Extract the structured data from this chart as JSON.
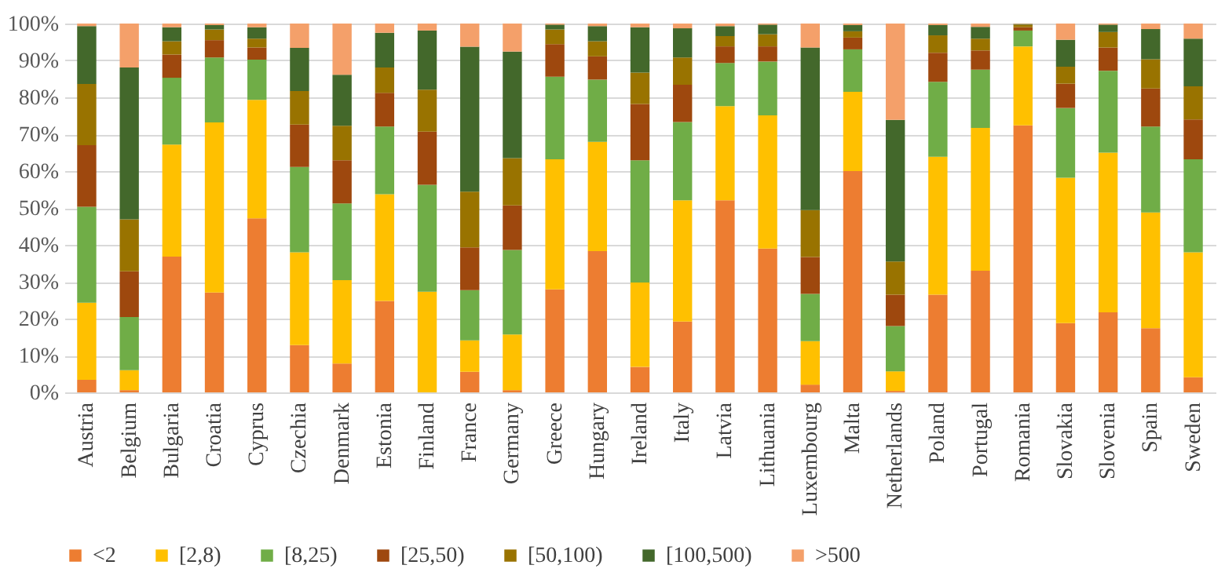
{
  "chart_data": {
    "type": "bar",
    "stacked": true,
    "categories": [
      "Austria",
      "Belgium",
      "Bulgaria",
      "Croatia",
      "Cyprus",
      "Czechia",
      "Denmark",
      "Estonia",
      "Finland",
      "France",
      "Germany",
      "Greece",
      "Hungary",
      "Ireland",
      "Italy",
      "Latvia",
      "Lithuania",
      "Luxembourg",
      "Malta",
      "Netherlands",
      "Poland",
      "Portugal",
      "Romania",
      "Slovakia",
      "Slovenia",
      "Spain",
      "Sweden"
    ],
    "series": [
      {
        "name": "<2",
        "color": "#ed7d31",
        "values": [
          3.4,
          0.6,
          36.8,
          27.1,
          47.2,
          12.8,
          7.8,
          24.8,
          0,
          5.6,
          0.6,
          27.9,
          38.3,
          6.9,
          19.2,
          52.1,
          39,
          2.1,
          60,
          0.4,
          26.5,
          33,
          72.4,
          18.8,
          21.7,
          17.4,
          4.1
        ]
      },
      {
        "name": "[2,8)",
        "color": "#ffc000",
        "values": [
          20.9,
          5.4,
          30.4,
          46.1,
          32.1,
          25.2,
          22.6,
          28.9,
          27.3,
          8.5,
          15.1,
          35.3,
          29.6,
          22.9,
          32.9,
          25.5,
          36.1,
          11.8,
          21.5,
          5.3,
          37.4,
          38.7,
          21.4,
          39.4,
          43.3,
          31.4,
          33.9
        ]
      },
      {
        "name": "[8,25)",
        "color": "#70ad47",
        "values": [
          26,
          14.4,
          18.1,
          17.6,
          10.9,
          23.1,
          20.8,
          18.4,
          29,
          13.6,
          22.9,
          22.4,
          16.9,
          33.1,
          21.2,
          11.7,
          14.6,
          12.8,
          11.5,
          12.3,
          20.3,
          15.8,
          4.3,
          18.9,
          22.2,
          23.3,
          25.2
        ]
      },
      {
        "name": "[25,50)",
        "color": "#9e480e",
        "values": [
          16.7,
          12.4,
          6.3,
          4.7,
          3.3,
          11.5,
          11.7,
          9.1,
          14.4,
          11.6,
          12.1,
          8.8,
          6.3,
          15.3,
          10.1,
          4.5,
          4.1,
          10,
          3.2,
          8.5,
          7.9,
          5.2,
          0.9,
          6.6,
          6.3,
          10.3,
          10.8
        ]
      },
      {
        "name": "[50,100)",
        "color": "#997300",
        "values": [
          16.6,
          14.1,
          3.6,
          2.9,
          2.4,
          9.1,
          9.4,
          6.9,
          11.4,
          15.1,
          12.8,
          4,
          4.1,
          8.5,
          7.4,
          2.8,
          3.3,
          12.7,
          1.7,
          9,
          4.7,
          3.2,
          0.7,
          4.6,
          4.2,
          7.9,
          9
        ]
      },
      {
        "name": "[100,500)",
        "color": "#43682b",
        "values": [
          15.7,
          41.2,
          3.8,
          1.2,
          3.1,
          11.7,
          13.8,
          9.4,
          16,
          39.3,
          28.9,
          1.3,
          4.1,
          12.3,
          7.9,
          2.7,
          2.6,
          44.1,
          1.7,
          38.4,
          2.8,
          3.2,
          0.2,
          7.3,
          2,
          8.2,
          12.9
        ]
      },
      {
        "name": ">500",
        "color": "#f4a06a",
        "values": [
          0.7,
          11.9,
          1,
          0.4,
          1,
          6.6,
          13.9,
          2.5,
          1.9,
          6.3,
          7.6,
          0.3,
          0.7,
          1,
          1.3,
          0.7,
          0.3,
          6.5,
          0.4,
          26.1,
          0.4,
          0.9,
          0.1,
          4.4,
          0.3,
          1.5,
          4.1
        ]
      }
    ],
    "ylim": [
      0,
      100
    ],
    "yticks": [
      {
        "value": 0,
        "label": "0%"
      },
      {
        "value": 10,
        "label": "10%"
      },
      {
        "value": 20,
        "label": "20%"
      },
      {
        "value": 30,
        "label": "30%"
      },
      {
        "value": 40,
        "label": "40%"
      },
      {
        "value": 50,
        "label": "50%"
      },
      {
        "value": 60,
        "label": "60%"
      },
      {
        "value": 70,
        "label": "70%"
      },
      {
        "value": 80,
        "label": "80%"
      },
      {
        "value": 90,
        "label": "90%"
      },
      {
        "value": 100,
        "label": "100%"
      }
    ],
    "grid": "y",
    "legend": "bottom"
  }
}
